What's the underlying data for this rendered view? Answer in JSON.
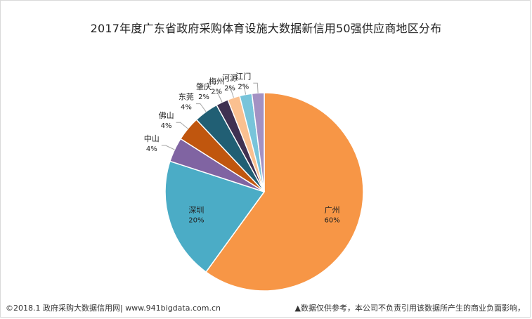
{
  "chart_data": {
    "type": "pie",
    "title": "2017年度广东省政府采购体育设施大数据新信用50强供应商地区分布",
    "slices": [
      {
        "label": "广州",
        "value": 60,
        "pct_label": "60%",
        "color": "#F79646"
      },
      {
        "label": "深圳",
        "value": 20,
        "pct_label": "20%",
        "color": "#4BACC6"
      },
      {
        "label": "中山",
        "value": 4,
        "pct_label": "4%",
        "color": "#8064A2"
      },
      {
        "label": "佛山",
        "value": 4,
        "pct_label": "4%",
        "color": "#C0560E"
      },
      {
        "label": "东莞",
        "value": 4,
        "pct_label": "4%",
        "color": "#215F74"
      },
      {
        "label": "肇庆",
        "value": 2,
        "pct_label": "2%",
        "color": "#3F3151"
      },
      {
        "label": "梅州",
        "value": 2,
        "pct_label": "2%",
        "color": "#FAC090"
      },
      {
        "label": "河源",
        "value": 2,
        "pct_label": "2%",
        "color": "#78C4DA"
      },
      {
        "label": "江门",
        "value": 2,
        "pct_label": "2%",
        "color": "#A391C3"
      }
    ],
    "legend": "none"
  },
  "footer": {
    "left": "©2018.1 政府采购大数据信用网| www.941bigdata.com.cn",
    "right": "▲数据仅供参考，本公司不负责引用该数据所产生的商业负面影响，"
  }
}
